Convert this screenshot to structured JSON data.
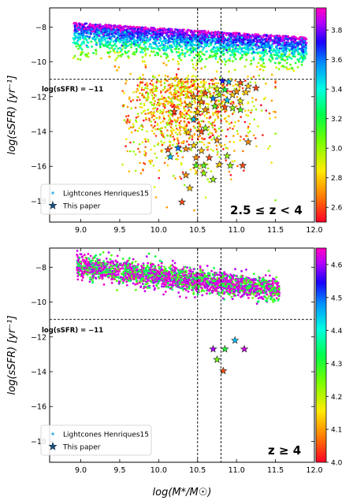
{
  "chart_data": [
    {
      "type": "scatter",
      "xlabel": "log(M*/M☉)",
      "ylabel": "log(sSFR) [yr⁻¹]",
      "xlim": [
        8.6,
        12.0
      ],
      "ylim": [
        -19.2,
        -6.9
      ],
      "xticks": [
        9.0,
        9.5,
        10.0,
        10.5,
        11.0,
        11.5,
        12.0
      ],
      "yticks": [
        -8,
        -10,
        -12,
        -14,
        -16,
        -18
      ],
      "grid": false,
      "vlines": [
        10.5,
        10.8
      ],
      "hline": -11,
      "hline_label": "log(sSFR) = −11",
      "legend_position": "bottom-left",
      "legend": [
        "Lightcones Henriques15",
        "This paper"
      ],
      "annotation": "2.5 ≤ z < 4",
      "colorbar": {
        "ticks": [
          "3.8",
          "3.6",
          "3.4",
          "3.2",
          "3.0",
          "2.8",
          "2.6"
        ],
        "range": [
          2.5,
          3.95
        ],
        "colormap": "gist_rainbow_r"
      },
      "series": [
        {
          "name": "This paper",
          "marker": "star",
          "points": [
            [
              10.82,
              -11.1,
              3.7
            ],
            [
              10.9,
              -11.15,
              3.5
            ],
            [
              11.05,
              -11.2,
              2.6
            ],
            [
              11.15,
              -11.4,
              2.8
            ],
            [
              11.25,
              -11.5,
              2.6
            ],
            [
              10.75,
              -11.55,
              2.9
            ],
            [
              10.85,
              -11.6,
              3.2
            ],
            [
              11.0,
              -11.7,
              2.7
            ],
            [
              11.12,
              -11.75,
              2.8
            ],
            [
              10.6,
              -11.8,
              2.6
            ],
            [
              10.78,
              -11.9,
              3.0
            ],
            [
              10.95,
              -11.9,
              2.8
            ],
            [
              10.45,
              -12.0,
              2.7
            ],
            [
              10.7,
              -12.1,
              3.6
            ],
            [
              10.88,
              -12.2,
              3.5
            ],
            [
              11.05,
              -12.25,
              2.9
            ],
            [
              10.55,
              -12.3,
              2.7
            ],
            [
              10.4,
              -12.5,
              2.8
            ],
            [
              10.72,
              -12.55,
              3.1
            ],
            [
              10.85,
              -12.6,
              2.6
            ],
            [
              10.95,
              -12.65,
              3.0
            ],
            [
              10.6,
              -12.75,
              2.7
            ],
            [
              10.2,
              -12.85,
              2.6
            ],
            [
              10.5,
              -12.9,
              2.8
            ],
            [
              11.05,
              -12.75,
              3.1
            ],
            [
              10.45,
              -13.3,
              3.5
            ],
            [
              10.6,
              -13.8,
              3.0
            ],
            [
              10.55,
              -14.0,
              2.6
            ],
            [
              10.38,
              -14.05,
              2.8
            ],
            [
              10.75,
              -14.5,
              2.7
            ],
            [
              11.15,
              -14.6,
              2.7
            ],
            [
              10.45,
              -14.8,
              2.8
            ],
            [
              10.12,
              -15.05,
              2.6
            ],
            [
              10.25,
              -14.95,
              3.6
            ],
            [
              10.35,
              -15.0,
              2.7
            ],
            [
              10.55,
              -15.1,
              2.8
            ],
            [
              10.15,
              -15.45,
              3.5
            ],
            [
              10.48,
              -15.5,
              2.7
            ],
            [
              10.65,
              -15.5,
              2.6
            ],
            [
              10.48,
              -15.95,
              3.1
            ],
            [
              10.58,
              -15.95,
              3.1
            ],
            [
              10.78,
              -15.9,
              2.8
            ],
            [
              10.92,
              -15.95,
              3.0
            ],
            [
              11.08,
              -15.95,
              2.6
            ],
            [
              10.88,
              -15.4,
              3.0
            ],
            [
              10.58,
              -16.4,
              3.0
            ],
            [
              10.35,
              -16.5,
              2.7
            ],
            [
              10.7,
              -16.75,
              3.0
            ],
            [
              10.4,
              -17.25,
              2.8
            ],
            [
              10.3,
              -18.05,
              2.6
            ]
          ]
        },
        {
          "name": "Lightcones Henriques15",
          "marker": "dot"
        }
      ]
    },
    {
      "type": "scatter",
      "xlabel": "log(M*/M☉)",
      "ylabel": "log(sSFR) [yr⁻¹]",
      "xlim": [
        8.6,
        12.0
      ],
      "ylim": [
        -19.2,
        -6.9
      ],
      "xticks": [
        9.0,
        9.5,
        10.0,
        10.5,
        11.0,
        11.5,
        12.0
      ],
      "yticks": [
        -8,
        -10,
        -12,
        -14,
        -16,
        -18
      ],
      "grid": false,
      "vlines": [
        10.5,
        10.8
      ],
      "hline": -11,
      "hline_label": "log(sSFR) = −11",
      "legend_position": "bottom-left",
      "legend": [
        "Lightcones Henriques15",
        "This paper"
      ],
      "annotation": "z ≥ 4",
      "colorbar": {
        "ticks": [
          "4.6",
          "4.5",
          "4.4",
          "4.3",
          "4.2",
          "4.1",
          "4.0"
        ],
        "range": [
          4.0,
          4.65
        ],
        "colormap": "gist_rainbow_r"
      },
      "series": [
        {
          "name": "This paper",
          "marker": "star",
          "points": [
            [
              10.98,
              -12.2,
              4.45
            ],
            [
              10.7,
              -12.7,
              4.6
            ],
            [
              10.85,
              -12.7,
              4.3
            ],
            [
              11.1,
              -12.7,
              4.62
            ],
            [
              10.75,
              -13.3,
              4.25
            ],
            [
              10.83,
              -13.95,
              4.05
            ]
          ]
        },
        {
          "name": "Lightcones Henriques15",
          "marker": "dot"
        }
      ]
    }
  ]
}
